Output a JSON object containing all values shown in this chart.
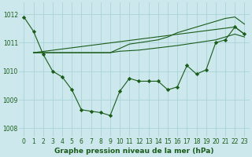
{
  "xlabel": "Graphe pression niveau de la mer (hPa)",
  "bg_color": "#cce8ec",
  "grid_color": "#aad4d8",
  "line_color": "#1a5c1a",
  "xlim": [
    -0.5,
    23.5
  ],
  "ylim": [
    1007.7,
    1012.4
  ],
  "yticks": [
    1008,
    1009,
    1010,
    1011,
    1012
  ],
  "xticks": [
    0,
    1,
    2,
    3,
    4,
    5,
    6,
    7,
    8,
    9,
    10,
    11,
    12,
    13,
    14,
    15,
    16,
    17,
    18,
    19,
    20,
    21,
    22,
    23
  ],
  "line1_x": [
    0,
    1,
    2,
    3,
    4,
    5,
    6,
    7,
    8,
    9,
    10,
    11,
    12,
    13,
    14,
    15,
    16,
    17,
    18,
    19,
    20,
    21,
    22,
    23
  ],
  "line1_y": [
    1011.9,
    1011.4,
    1010.6,
    1010.0,
    1009.8,
    1009.35,
    1008.65,
    1008.6,
    1008.55,
    1008.45,
    1009.3,
    1009.75,
    1009.65,
    1009.65,
    1009.65,
    1009.35,
    1009.45,
    1010.2,
    1009.9,
    1010.05,
    1011.0,
    1011.1,
    1011.55,
    1011.3
  ],
  "line2_x": [
    1,
    2,
    3,
    4,
    5,
    6,
    7,
    8,
    9,
    10,
    11,
    12,
    13,
    14,
    15,
    16,
    17,
    18,
    19,
    20,
    21,
    22,
    23
  ],
  "line2_y": [
    1010.65,
    1010.65,
    1010.65,
    1010.65,
    1010.65,
    1010.65,
    1010.65,
    1010.65,
    1010.65,
    1010.7,
    1010.72,
    1010.74,
    1010.78,
    1010.82,
    1010.86,
    1010.9,
    1010.95,
    1011.0,
    1011.05,
    1011.1,
    1011.2,
    1011.3,
    1011.2
  ],
  "line3_x": [
    1,
    2,
    3,
    4,
    5,
    6,
    7,
    8,
    9,
    10,
    11,
    12,
    13,
    14,
    15,
    16,
    17,
    18,
    19,
    20,
    21,
    22,
    23
  ],
  "line3_y": [
    1010.65,
    1010.65,
    1010.65,
    1010.65,
    1010.65,
    1010.65,
    1010.65,
    1010.65,
    1010.65,
    1010.8,
    1010.95,
    1011.0,
    1011.05,
    1011.1,
    1011.2,
    1011.35,
    1011.45,
    1011.55,
    1011.65,
    1011.75,
    1011.85,
    1011.9,
    1011.65
  ],
  "line4_x": [
    1,
    22,
    23
  ],
  "line4_y": [
    1010.65,
    1011.55,
    1011.3
  ],
  "tick_fontsize": 5.5,
  "xlabel_fontsize": 6.5
}
